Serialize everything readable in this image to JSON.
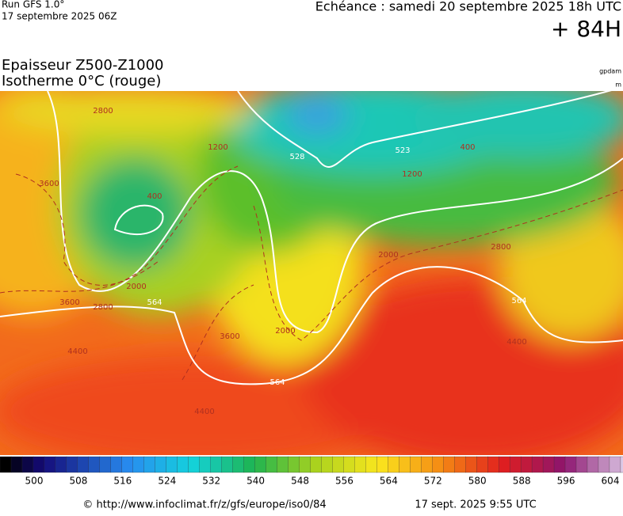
{
  "header": {
    "model": "Run GFS 1.0°",
    "run": "17 septembre 2025 06Z",
    "echeance": "Echéance : samedi 20 septembre 2025 18h UTC",
    "lead": "+ 84H"
  },
  "title": {
    "line1": "Epaisseur Z500-Z1000",
    "line2": "Isotherme 0°C (rouge)",
    "unit1": "gpdam",
    "unit2": "m"
  },
  "map": {
    "contour_labels": [
      "528",
      "523",
      "564",
      "564",
      "564",
      "3600",
      "3600",
      "3600",
      "2800",
      "2800",
      "2800",
      "2000",
      "2000",
      "2000",
      "1200",
      "1200",
      "400",
      "400",
      "4400",
      "4400",
      "4400"
    ]
  },
  "colorbar": {
    "ticks": [
      500,
      508,
      516,
      524,
      532,
      540,
      548,
      556,
      564,
      572,
      580,
      588,
      596,
      604
    ]
  },
  "footer": {
    "url": "© http://www.infoclimat.fr/z/gfs/europe/iso0/84",
    "date": "17 sept. 2025  9:55 UTC"
  }
}
